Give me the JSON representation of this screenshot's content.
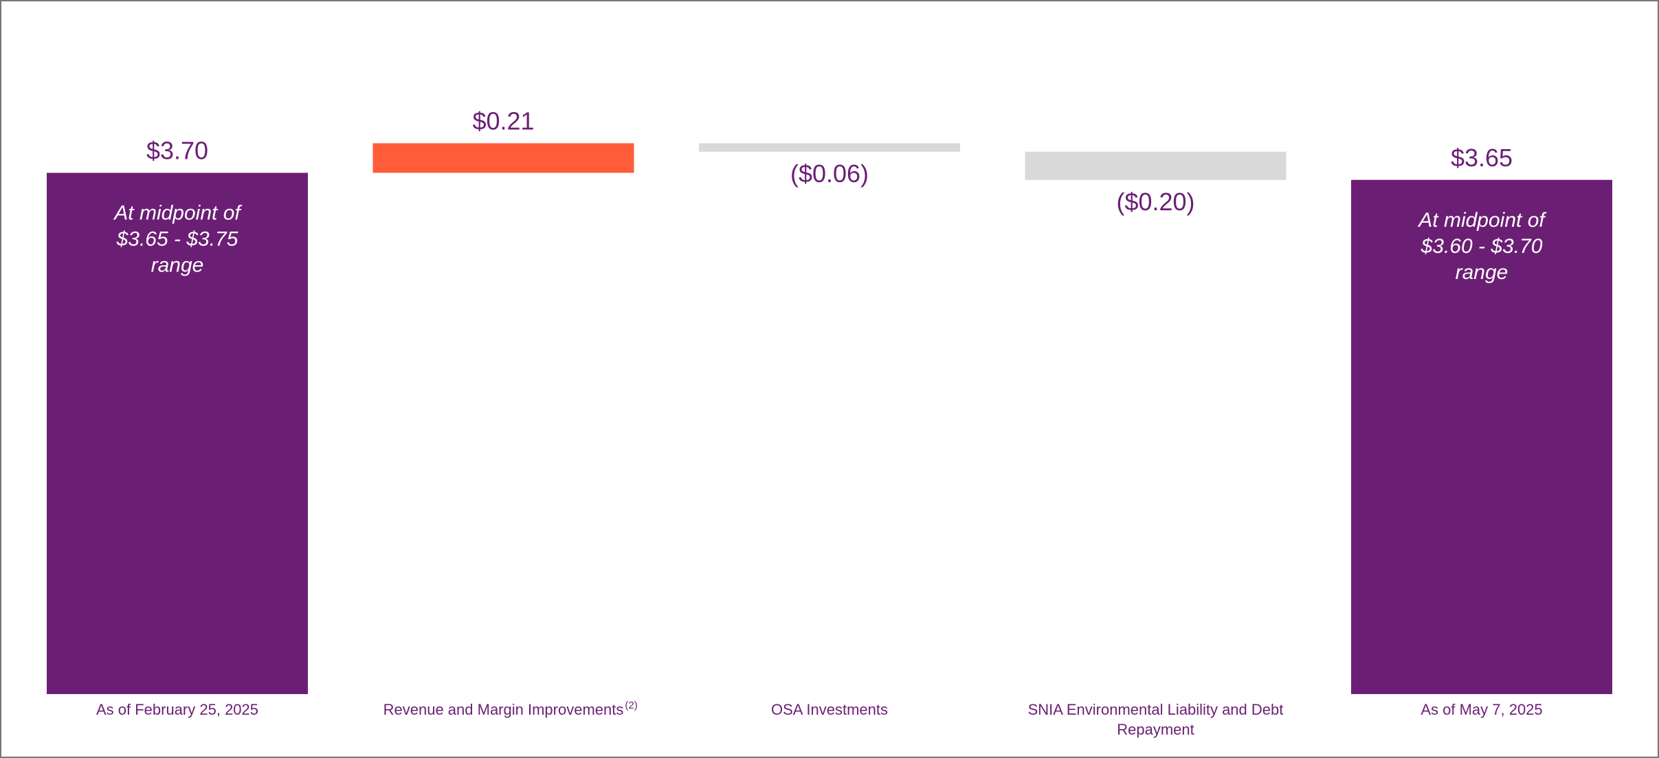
{
  "chart_data": {
    "type": "bar",
    "subtype": "waterfall",
    "title": "",
    "xlabel": "",
    "ylabel": "",
    "ylim": [
      0,
      4.0
    ],
    "grid": false,
    "legend": "none",
    "colors": {
      "total": "#6b1f74",
      "increase": "#ff5c39",
      "decrease": "#d9d9d9",
      "label": "#6b1f74",
      "inside_text": "#ffffff"
    },
    "categories": [
      "As of February 25, 2025",
      "Revenue and Margin Improvements",
      "OSA Investments",
      "SNIA Environmental Liability and Debt Repayment",
      "As of May 7, 2025"
    ],
    "category_lines": [
      [
        "As of February 25, 2025"
      ],
      [
        "Revenue and Margin Improvements"
      ],
      [
        "OSA Investments"
      ],
      [
        "SNIA Environmental Liability and Debt",
        "Repayment"
      ],
      [
        "As of May 7, 2025"
      ]
    ],
    "category_footnotes": [
      "",
      "(2)",
      "",
      "",
      ""
    ],
    "bar_kind": [
      "total",
      "increase",
      "decrease",
      "decrease",
      "total"
    ],
    "values": [
      3.7,
      0.21,
      -0.06,
      -0.2,
      3.65
    ],
    "data_labels": [
      "$3.70",
      "$0.21",
      "($0.06)",
      "($0.20)",
      "$3.65"
    ],
    "inside_labels": [
      [
        "At midpoint of",
        "$3.65 - $3.75",
        "range"
      ],
      [],
      [],
      [],
      [
        "At midpoint of",
        "$3.60 - $3.70",
        "range"
      ]
    ]
  }
}
